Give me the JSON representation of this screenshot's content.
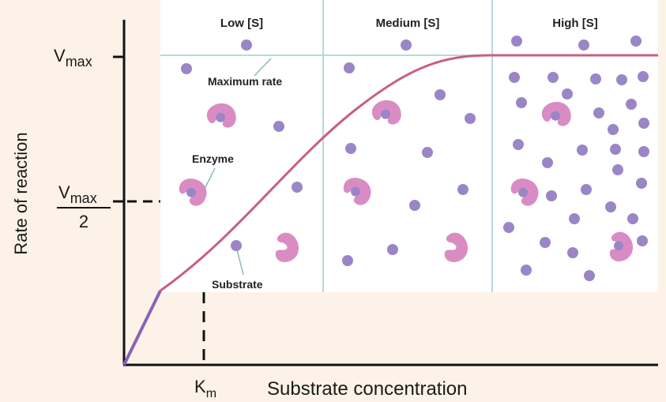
{
  "y_axis": {
    "label": "Rate of reaction",
    "vmax_label": "V",
    "vmax_sub": "max",
    "half_numerator": "V",
    "half_numerator_sub": "max",
    "half_denominator": "2"
  },
  "x_axis": {
    "label": "Substrate concentration",
    "km_label": "K",
    "km_sub": "m"
  },
  "panels": [
    {
      "label": "Low [S]"
    },
    {
      "label": "Medium [S]"
    },
    {
      "label": "High [S]"
    }
  ],
  "annotations": {
    "max_rate": "Maximum rate",
    "enzyme": "Enzyme",
    "substrate": "Substrate"
  },
  "colors": {
    "background": "#fdf2e7",
    "panel": "#ffffff",
    "panel_divider": "#b7d9dc",
    "curve": "#c7607f",
    "curve_initial": "#8a63b6",
    "enzyme": "#d98cc4",
    "substrate": "#9a86c6"
  }
}
